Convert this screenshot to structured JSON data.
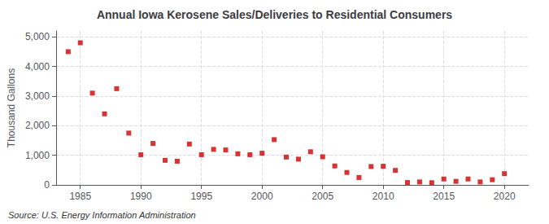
{
  "chart_data": {
    "type": "scatter",
    "title": "Annual Iowa Kerosene Sales/Deliveries to Residential Consumers",
    "ylabel": "Thousand Gallons",
    "source": "Source: U.S. Energy Information Administration",
    "x": [
      1984,
      1985,
      1986,
      1987,
      1988,
      1989,
      1990,
      1991,
      1992,
      1993,
      1994,
      1995,
      1996,
      1997,
      1998,
      1999,
      2000,
      2001,
      2002,
      2003,
      2004,
      2005,
      2006,
      2007,
      2008,
      2009,
      2010,
      2011,
      2012,
      2013,
      2014,
      2015,
      2016,
      2017,
      2018,
      2019,
      2020
    ],
    "values": [
      4500,
      4800,
      3100,
      2400,
      3250,
      1750,
      1020,
      1400,
      830,
      800,
      1380,
      1020,
      1200,
      1180,
      1050,
      1020,
      1070,
      1530,
      940,
      870,
      1120,
      950,
      640,
      420,
      250,
      620,
      630,
      490,
      80,
      100,
      75,
      200,
      120,
      200,
      100,
      175,
      380
    ],
    "color": "#cc0000",
    "marker": "square",
    "xlim": [
      1983,
      2022
    ],
    "xticks": [
      1985,
      1990,
      1995,
      2000,
      2005,
      2010,
      2015,
      2020
    ],
    "ylim": [
      0,
      5200
    ],
    "yticks": [
      0,
      {
        "value": 1000,
        "label": "1,000"
      },
      {
        "value": 2000,
        "label": "2,000"
      },
      {
        "value": 3000,
        "label": "3,000"
      },
      {
        "value": 4000,
        "label": "4,000"
      },
      {
        "value": 5000,
        "label": "5,000"
      }
    ],
    "grid": true
  }
}
